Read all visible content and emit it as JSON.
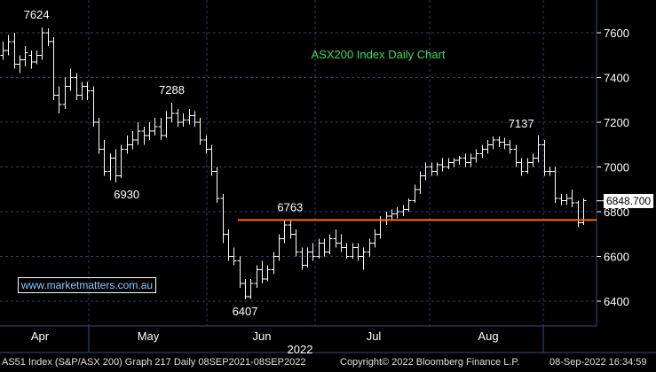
{
  "chart_data": {
    "type": "ohlc",
    "title": "ASX200 Index Daily Chart",
    "year_label": "2022",
    "x_tick_labels": [
      "Apr",
      "May",
      "Jun",
      "Jul",
      "Aug"
    ],
    "y_tick_labels": [
      "7600",
      "7400",
      "7200",
      "7000",
      "6800",
      "6600",
      "6400"
    ],
    "ylim": [
      6320,
      7760
    ],
    "grid": true,
    "last_price_label": "6848.700",
    "support_level": 6763,
    "annotations": [
      {
        "text": "7624",
        "x": 6,
        "y": 7624
      },
      {
        "text": "7288",
        "x": 30,
        "y": 7288
      },
      {
        "text": "6930",
        "x": 22,
        "y": 6930
      },
      {
        "text": "6763",
        "x": 51,
        "y": 6763
      },
      {
        "text": "6407",
        "x": 43,
        "y": 6407
      },
      {
        "text": "7137",
        "x": 92,
        "y": 7137
      }
    ],
    "series": [
      {
        "name": "",
        "values": [
          [
            7500,
            7560,
            7480,
            7520
          ],
          [
            7520,
            7590,
            7500,
            7560
          ],
          [
            7560,
            7600,
            7440,
            7460
          ],
          [
            7460,
            7500,
            7420,
            7480
          ],
          [
            7480,
            7540,
            7450,
            7510
          ],
          [
            7500,
            7520,
            7440,
            7470
          ],
          [
            7470,
            7520,
            7460,
            7500
          ],
          [
            7500,
            7624,
            7480,
            7600
          ],
          [
            7600,
            7620,
            7540,
            7560
          ],
          [
            7560,
            7580,
            7300,
            7320
          ],
          [
            7320,
            7360,
            7240,
            7280
          ],
          [
            7280,
            7400,
            7260,
            7360
          ],
          [
            7360,
            7440,
            7340,
            7400
          ],
          [
            7400,
            7420,
            7300,
            7320
          ],
          [
            7320,
            7380,
            7300,
            7360
          ],
          [
            7360,
            7380,
            7300,
            7340
          ],
          [
            7340,
            7360,
            7180,
            7200
          ],
          [
            7200,
            7220,
            7060,
            7080
          ],
          [
            7080,
            7120,
            6960,
            6980
          ],
          [
            6980,
            7060,
            6940,
            7040
          ],
          [
            7040,
            7080,
            6930,
            6960
          ],
          [
            6960,
            7100,
            6950,
            7080
          ],
          [
            7080,
            7140,
            7060,
            7100
          ],
          [
            7100,
            7160,
            7080,
            7120
          ],
          [
            7120,
            7200,
            7100,
            7160
          ],
          [
            7160,
            7180,
            7100,
            7140
          ],
          [
            7140,
            7200,
            7120,
            7160
          ],
          [
            7160,
            7220,
            7140,
            7180
          ],
          [
            7180,
            7220,
            7120,
            7140
          ],
          [
            7140,
            7250,
            7130,
            7220
          ],
          [
            7220,
            7288,
            7200,
            7240
          ],
          [
            7240,
            7260,
            7180,
            7200
          ],
          [
            7200,
            7240,
            7180,
            7210
          ],
          [
            7210,
            7260,
            7190,
            7230
          ],
          [
            7230,
            7250,
            7180,
            7200
          ],
          [
            7200,
            7220,
            7100,
            7120
          ],
          [
            7120,
            7140,
            7060,
            7080
          ],
          [
            7080,
            7100,
            6960,
            6980
          ],
          [
            6980,
            7000,
            6840,
            6860
          ],
          [
            6860,
            6880,
            6660,
            6700
          ],
          [
            6700,
            6720,
            6580,
            6600
          ],
          [
            6600,
            6640,
            6560,
            6580
          ],
          [
            6580,
            6600,
            6460,
            6480
          ],
          [
            6480,
            6500,
            6407,
            6420
          ],
          [
            6420,
            6500,
            6410,
            6480
          ],
          [
            6480,
            6560,
            6460,
            6540
          ],
          [
            6540,
            6580,
            6480,
            6500
          ],
          [
            6500,
            6560,
            6490,
            6540
          ],
          [
            6540,
            6620,
            6520,
            6600
          ],
          [
            6600,
            6700,
            6580,
            6680
          ],
          [
            6680,
            6763,
            6660,
            6740
          ],
          [
            6740,
            6760,
            6680,
            6700
          ],
          [
            6700,
            6720,
            6600,
            6620
          ],
          [
            6620,
            6640,
            6540,
            6560
          ],
          [
            6560,
            6640,
            6550,
            6620
          ],
          [
            6620,
            6660,
            6580,
            6600
          ],
          [
            6600,
            6680,
            6590,
            6660
          ],
          [
            6660,
            6680,
            6600,
            6620
          ],
          [
            6620,
            6700,
            6610,
            6680
          ],
          [
            6680,
            6720,
            6640,
            6660
          ],
          [
            6660,
            6700,
            6620,
            6640
          ],
          [
            6640,
            6660,
            6590,
            6600
          ],
          [
            6600,
            6660,
            6590,
            6640
          ],
          [
            6640,
            6660,
            6580,
            6600
          ],
          [
            6600,
            6640,
            6540,
            6620
          ],
          [
            6620,
            6680,
            6600,
            6660
          ],
          [
            6660,
            6720,
            6640,
            6700
          ],
          [
            6700,
            6780,
            6680,
            6760
          ],
          [
            6760,
            6800,
            6740,
            6780
          ],
          [
            6780,
            6810,
            6760,
            6790
          ],
          [
            6790,
            6820,
            6770,
            6800
          ],
          [
            6800,
            6830,
            6780,
            6810
          ],
          [
            6810,
            6860,
            6800,
            6850
          ],
          [
            6850,
            6920,
            6840,
            6900
          ],
          [
            6900,
            6980,
            6880,
            6960
          ],
          [
            6960,
            7020,
            6940,
            7000
          ],
          [
            7000,
            7020,
            6960,
            6980
          ],
          [
            6980,
            7020,
            6960,
            7010
          ],
          [
            7010,
            7040,
            6980,
            7000
          ],
          [
            7000,
            7040,
            6990,
            7020
          ],
          [
            7020,
            7040,
            7000,
            7030
          ],
          [
            7030,
            7050,
            7010,
            7040
          ],
          [
            7040,
            7060,
            7000,
            7020
          ],
          [
            7020,
            7060,
            7000,
            7040
          ],
          [
            7040,
            7080,
            7020,
            7060
          ],
          [
            7060,
            7100,
            7040,
            7080
          ],
          [
            7080,
            7120,
            7060,
            7100
          ],
          [
            7100,
            7137,
            7080,
            7120
          ],
          [
            7120,
            7137,
            7090,
            7110
          ],
          [
            7110,
            7130,
            7080,
            7100
          ],
          [
            7100,
            7120,
            7060,
            7080
          ],
          [
            7080,
            7100,
            7000,
            7020
          ],
          [
            7020,
            7040,
            6960,
            6980
          ],
          [
            6980,
            7040,
            6970,
            7020
          ],
          [
            7020,
            7060,
            7000,
            7040
          ],
          [
            7040,
            7140,
            7020,
            7100
          ],
          [
            7100,
            7120,
            6960,
            6980
          ],
          [
            6980,
            7000,
            6960,
            6980
          ],
          [
            6980,
            7000,
            6840,
            6860
          ],
          [
            6860,
            6880,
            6830,
            6850
          ],
          [
            6850,
            6880,
            6830,
            6860
          ],
          [
            6860,
            6900,
            6820,
            6840
          ],
          [
            6840,
            6850,
            6730,
            6750
          ],
          [
            6750,
            6860,
            6740,
            6848.7
          ]
        ]
      }
    ]
  },
  "footer": {
    "index_info": "AS51 Index (S&P/ASX 200) Graph 217  Daily 08SEP2021-08SEP2022",
    "copyright": "Copyright© 2022 Bloomberg Finance L.P.",
    "timestamp": "08-Sep-2022 16:34:59"
  },
  "website": "www.marketmatters.com.au",
  "colors": {
    "background": "#000000",
    "bars": "#ffffff",
    "support_line": "#ff6a13",
    "title": "#3cdc5a",
    "website": "#8ec8ff",
    "grid": "#2c3d5e"
  }
}
